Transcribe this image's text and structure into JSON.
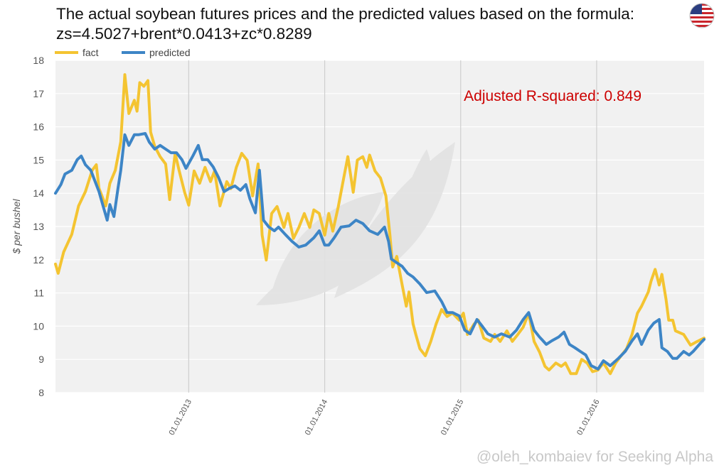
{
  "title": "The actual soybean futures prices and the predicted values based on the formula: zs=4.5027+brent*0.0413+zc*0.8289",
  "flag_icon": "us-flag-icon",
  "credit": "@oleh_kombaiev for Seeking Alpha",
  "chart_data": {
    "type": "line",
    "title": "The actual soybean futures prices and the predicted values based on the formula: zs=4.5027+brent*0.0413+zc*0.8289",
    "xlabel": "",
    "ylabel": "$ per bushel",
    "xlim": [
      2012.02,
      2016.79
    ],
    "ylim": [
      8,
      18
    ],
    "yticks": [
      8,
      9,
      10,
      11,
      12,
      13,
      14,
      15,
      16,
      17,
      18
    ],
    "xticks": [
      {
        "x": 2013.0,
        "label": "01.01.2013"
      },
      {
        "x": 2014.0,
        "label": "01.01.2014"
      },
      {
        "x": 2015.0,
        "label": "01.01.2015"
      },
      {
        "x": 2016.0,
        "label": "01.01.2016"
      }
    ],
    "grid": true,
    "legend_position": "top-left",
    "annotation": "Adjusted R-squared:  0.849",
    "series": [
      {
        "name": "fact",
        "color": "#f4c431",
        "points": [
          [
            2012.02,
            11.87
          ],
          [
            2012.04,
            11.59
          ],
          [
            2012.08,
            12.23
          ],
          [
            2012.14,
            12.76
          ],
          [
            2012.19,
            13.62
          ],
          [
            2012.24,
            14.05
          ],
          [
            2012.29,
            14.69
          ],
          [
            2012.32,
            14.86
          ],
          [
            2012.34,
            14.15
          ],
          [
            2012.39,
            13.62
          ],
          [
            2012.42,
            14.3
          ],
          [
            2012.46,
            14.69
          ],
          [
            2012.5,
            15.55
          ],
          [
            2012.53,
            17.57
          ],
          [
            2012.56,
            16.4
          ],
          [
            2012.6,
            16.8
          ],
          [
            2012.62,
            16.47
          ],
          [
            2012.64,
            17.33
          ],
          [
            2012.67,
            17.22
          ],
          [
            2012.7,
            17.39
          ],
          [
            2012.72,
            15.84
          ],
          [
            2012.75,
            15.41
          ],
          [
            2012.79,
            15.1
          ],
          [
            2012.83,
            14.88
          ],
          [
            2012.86,
            13.81
          ],
          [
            2012.9,
            15.2
          ],
          [
            2012.93,
            14.67
          ],
          [
            2012.97,
            14.03
          ],
          [
            2013.0,
            13.64
          ],
          [
            2013.04,
            14.67
          ],
          [
            2013.08,
            14.3
          ],
          [
            2013.12,
            14.78
          ],
          [
            2013.16,
            14.35
          ],
          [
            2013.19,
            14.67
          ],
          [
            2013.23,
            13.62
          ],
          [
            2013.28,
            14.35
          ],
          [
            2013.31,
            14.14
          ],
          [
            2013.35,
            14.78
          ],
          [
            2013.39,
            15.2
          ],
          [
            2013.43,
            14.99
          ],
          [
            2013.47,
            13.92
          ],
          [
            2013.51,
            14.88
          ],
          [
            2013.54,
            12.74
          ],
          [
            2013.57,
            11.99
          ],
          [
            2013.61,
            13.39
          ],
          [
            2013.65,
            13.6
          ],
          [
            2013.7,
            12.97
          ],
          [
            2013.73,
            13.39
          ],
          [
            2013.77,
            12.64
          ],
          [
            2013.81,
            12.97
          ],
          [
            2013.85,
            13.39
          ],
          [
            2013.89,
            12.97
          ],
          [
            2013.92,
            13.5
          ],
          [
            2013.96,
            13.39
          ],
          [
            2014.0,
            12.74
          ],
          [
            2014.03,
            13.39
          ],
          [
            2014.06,
            12.86
          ],
          [
            2014.1,
            13.6
          ],
          [
            2014.14,
            14.46
          ],
          [
            2014.17,
            15.1
          ],
          [
            2014.21,
            14.03
          ],
          [
            2014.24,
            15.0
          ],
          [
            2014.28,
            15.1
          ],
          [
            2014.31,
            14.78
          ],
          [
            2014.33,
            15.15
          ],
          [
            2014.37,
            14.67
          ],
          [
            2014.41,
            14.46
          ],
          [
            2014.45,
            13.92
          ],
          [
            2014.48,
            12.74
          ],
          [
            2014.5,
            11.78
          ],
          [
            2014.53,
            12.1
          ],
          [
            2014.57,
            11.24
          ],
          [
            2014.6,
            10.6
          ],
          [
            2014.62,
            11.03
          ],
          [
            2014.65,
            10.07
          ],
          [
            2014.67,
            9.75
          ],
          [
            2014.7,
            9.32
          ],
          [
            2014.74,
            9.11
          ],
          [
            2014.78,
            9.54
          ],
          [
            2014.82,
            10.07
          ],
          [
            2014.86,
            10.5
          ],
          [
            2014.9,
            10.29
          ],
          [
            2014.94,
            10.39
          ],
          [
            2014.99,
            10.18
          ],
          [
            2015.02,
            10.39
          ],
          [
            2015.05,
            9.75
          ],
          [
            2015.1,
            10.07
          ],
          [
            2015.13,
            10.18
          ],
          [
            2015.17,
            9.64
          ],
          [
            2015.22,
            9.54
          ],
          [
            2015.25,
            9.75
          ],
          [
            2015.29,
            9.54
          ],
          [
            2015.34,
            9.86
          ],
          [
            2015.38,
            9.54
          ],
          [
            2015.42,
            9.75
          ],
          [
            2015.46,
            9.97
          ],
          [
            2015.5,
            10.39
          ],
          [
            2015.54,
            9.54
          ],
          [
            2015.58,
            9.22
          ],
          [
            2015.62,
            8.79
          ],
          [
            2015.65,
            8.68
          ],
          [
            2015.7,
            8.89
          ],
          [
            2015.74,
            8.79
          ],
          [
            2015.77,
            8.89
          ],
          [
            2015.81,
            8.57
          ],
          [
            2015.85,
            8.57
          ],
          [
            2015.89,
            9.0
          ],
          [
            2015.93,
            8.89
          ],
          [
            2015.97,
            8.63
          ],
          [
            2016.01,
            8.68
          ],
          [
            2016.05,
            8.89
          ],
          [
            2016.1,
            8.57
          ],
          [
            2016.14,
            8.89
          ],
          [
            2016.18,
            9.11
          ],
          [
            2016.22,
            9.32
          ],
          [
            2016.26,
            9.75
          ],
          [
            2016.3,
            10.39
          ],
          [
            2016.33,
            10.6
          ],
          [
            2016.38,
            11.03
          ],
          [
            2016.4,
            11.35
          ],
          [
            2016.43,
            11.71
          ],
          [
            2016.46,
            11.24
          ],
          [
            2016.48,
            11.56
          ],
          [
            2016.51,
            10.81
          ],
          [
            2016.53,
            10.18
          ],
          [
            2016.56,
            10.18
          ],
          [
            2016.58,
            9.86
          ],
          [
            2016.64,
            9.75
          ],
          [
            2016.69,
            9.43
          ],
          [
            2016.74,
            9.54
          ],
          [
            2016.79,
            9.64
          ]
        ]
      },
      {
        "name": "predicted",
        "color": "#3d85c6",
        "points": [
          [
            2012.02,
            14.0
          ],
          [
            2012.06,
            14.26
          ],
          [
            2012.09,
            14.58
          ],
          [
            2012.14,
            14.69
          ],
          [
            2012.18,
            15.01
          ],
          [
            2012.21,
            15.12
          ],
          [
            2012.24,
            14.86
          ],
          [
            2012.28,
            14.69
          ],
          [
            2012.32,
            14.26
          ],
          [
            2012.34,
            14.05
          ],
          [
            2012.37,
            13.62
          ],
          [
            2012.4,
            13.19
          ],
          [
            2012.42,
            13.66
          ],
          [
            2012.45,
            13.3
          ],
          [
            2012.48,
            14.15
          ],
          [
            2012.5,
            14.69
          ],
          [
            2012.53,
            15.76
          ],
          [
            2012.56,
            15.44
          ],
          [
            2012.6,
            15.76
          ],
          [
            2012.63,
            15.76
          ],
          [
            2012.68,
            15.8
          ],
          [
            2012.71,
            15.54
          ],
          [
            2012.75,
            15.33
          ],
          [
            2012.79,
            15.44
          ],
          [
            2012.83,
            15.33
          ],
          [
            2012.87,
            15.22
          ],
          [
            2012.91,
            15.22
          ],
          [
            2012.95,
            15.01
          ],
          [
            2012.98,
            14.75
          ],
          [
            2013.03,
            15.12
          ],
          [
            2013.07,
            15.44
          ],
          [
            2013.1,
            15.01
          ],
          [
            2013.14,
            15.01
          ],
          [
            2013.18,
            14.79
          ],
          [
            2013.22,
            14.47
          ],
          [
            2013.26,
            14.05
          ],
          [
            2013.3,
            14.15
          ],
          [
            2013.34,
            14.22
          ],
          [
            2013.38,
            14.09
          ],
          [
            2013.42,
            14.26
          ],
          [
            2013.45,
            13.83
          ],
          [
            2013.49,
            13.41
          ],
          [
            2013.52,
            14.69
          ],
          [
            2013.55,
            13.19
          ],
          [
            2013.59,
            12.98
          ],
          [
            2013.63,
            12.87
          ],
          [
            2013.66,
            12.98
          ],
          [
            2013.71,
            12.76
          ],
          [
            2013.76,
            12.55
          ],
          [
            2013.81,
            12.38
          ],
          [
            2013.86,
            12.44
          ],
          [
            2013.92,
            12.66
          ],
          [
            2013.96,
            12.87
          ],
          [
            2014.0,
            12.44
          ],
          [
            2014.03,
            12.44
          ],
          [
            2014.07,
            12.66
          ],
          [
            2014.12,
            12.98
          ],
          [
            2014.18,
            13.02
          ],
          [
            2014.23,
            13.19
          ],
          [
            2014.28,
            13.09
          ],
          [
            2014.33,
            12.87
          ],
          [
            2014.39,
            12.76
          ],
          [
            2014.44,
            12.98
          ],
          [
            2014.47,
            12.55
          ],
          [
            2014.49,
            12.02
          ],
          [
            2014.53,
            11.91
          ],
          [
            2014.57,
            11.8
          ],
          [
            2014.61,
            11.59
          ],
          [
            2014.65,
            11.48
          ],
          [
            2014.7,
            11.27
          ],
          [
            2014.75,
            11.01
          ],
          [
            2014.81,
            11.06
          ],
          [
            2014.86,
            10.74
          ],
          [
            2014.9,
            10.41
          ],
          [
            2014.94,
            10.41
          ],
          [
            2014.99,
            10.31
          ],
          [
            2015.03,
            9.88
          ],
          [
            2015.07,
            9.77
          ],
          [
            2015.12,
            10.2
          ],
          [
            2015.16,
            9.99
          ],
          [
            2015.2,
            9.77
          ],
          [
            2015.25,
            9.67
          ],
          [
            2015.3,
            9.77
          ],
          [
            2015.36,
            9.67
          ],
          [
            2015.41,
            9.88
          ],
          [
            2015.46,
            10.2
          ],
          [
            2015.5,
            10.41
          ],
          [
            2015.54,
            9.88
          ],
          [
            2015.58,
            9.67
          ],
          [
            2015.63,
            9.45
          ],
          [
            2015.67,
            9.56
          ],
          [
            2015.72,
            9.67
          ],
          [
            2015.76,
            9.82
          ],
          [
            2015.8,
            9.45
          ],
          [
            2015.84,
            9.35
          ],
          [
            2015.88,
            9.24
          ],
          [
            2015.92,
            9.13
          ],
          [
            2015.96,
            8.81
          ],
          [
            2016.01,
            8.71
          ],
          [
            2016.05,
            8.96
          ],
          [
            2016.1,
            8.81
          ],
          [
            2016.16,
            9.03
          ],
          [
            2016.21,
            9.24
          ],
          [
            2016.26,
            9.56
          ],
          [
            2016.3,
            9.77
          ],
          [
            2016.33,
            9.45
          ],
          [
            2016.38,
            9.88
          ],
          [
            2016.42,
            10.09
          ],
          [
            2016.46,
            10.2
          ],
          [
            2016.48,
            9.35
          ],
          [
            2016.52,
            9.24
          ],
          [
            2016.56,
            9.03
          ],
          [
            2016.59,
            9.03
          ],
          [
            2016.64,
            9.24
          ],
          [
            2016.68,
            9.13
          ],
          [
            2016.71,
            9.24
          ],
          [
            2016.77,
            9.52
          ],
          [
            2016.79,
            9.6
          ]
        ]
      }
    ]
  }
}
